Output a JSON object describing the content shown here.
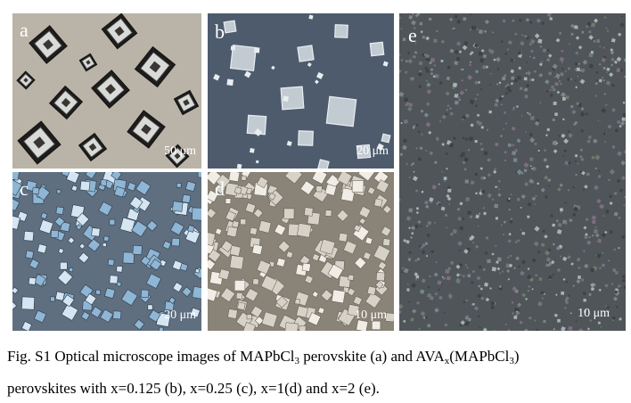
{
  "figure": {
    "panels": [
      {
        "id": "a",
        "label": "a",
        "scale_bar": "50 μm",
        "composition": "MAPbCl3",
        "colors": {
          "bg": "#b9b3a8",
          "crystal": "#d8dbd8",
          "edge": "#1f1d1c"
        }
      },
      {
        "id": "b",
        "label": "b",
        "scale_bar": "20 μm",
        "composition": "x=0.125",
        "colors": {
          "bg": "#4d5b6d",
          "crystal": "#c3cbd2",
          "edge": "#e8edf0"
        }
      },
      {
        "id": "c",
        "label": "c",
        "scale_bar": "20 μm",
        "composition": "x=0.25",
        "colors": {
          "bg": "#5f6f80",
          "crystal": "#8fb6d4",
          "edge": "#d5e6f2"
        }
      },
      {
        "id": "d",
        "label": "d",
        "scale_bar": "10 μm",
        "composition": "x=1",
        "colors": {
          "bg": "#8a8478",
          "crystal": "#d6d2c8",
          "edge": "#f0ede6"
        }
      },
      {
        "id": "e",
        "label": "e",
        "scale_bar": "10 μm",
        "composition": "x=2",
        "colors": {
          "bg": "#4f5558",
          "crystal": "#7a868a",
          "edge": "#a8b2b3"
        }
      }
    ],
    "caption": {
      "line1_a": "Fig. S1 Optical microscope images of MAPbCl",
      "line1_sub1": "3",
      "line1_b": " perovskite (a) and AVA",
      "line1_sub2": "x",
      "line1_c": "(MAPbCl",
      "line1_sub3": "3",
      "line1_d": ")",
      "line2": "perovskites with x=0.125 (b), x=0.25 (c), x=1(d) and x=2 (e)."
    }
  }
}
